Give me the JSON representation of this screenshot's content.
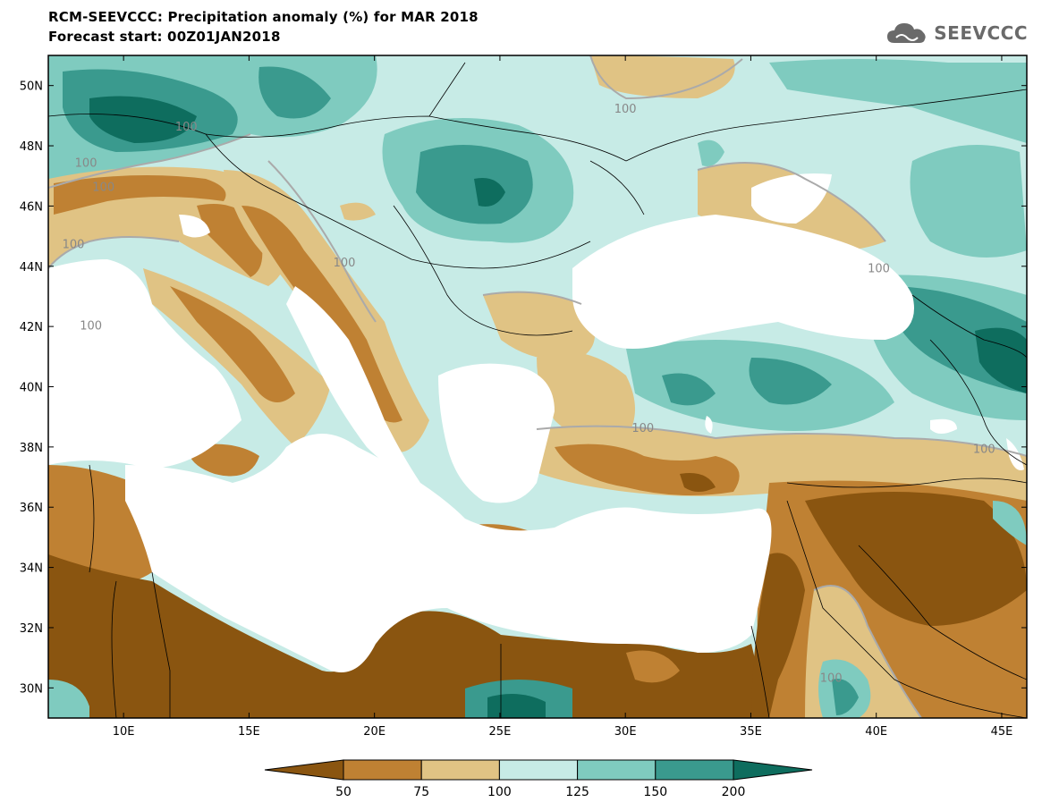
{
  "title_line1": "RCM-SEEVCCC: Precipitation anomaly (%) for MAR 2018",
  "title_line2": "Forecast start: 00Z01JAN2018",
  "logo_text": "SEEVCCC",
  "map": {
    "lon_range": [
      7,
      46
    ],
    "lat_range": [
      29,
      51
    ],
    "lon_ticks": [
      "10E",
      "15E",
      "20E",
      "25E",
      "30E",
      "35E",
      "40E",
      "45E"
    ],
    "lat_ticks": [
      "50N",
      "48N",
      "46N",
      "44N",
      "42N",
      "40N",
      "38N",
      "36N",
      "34N",
      "32N",
      "30N"
    ],
    "contour_labels": [
      "100",
      "100",
      "100",
      "100",
      "100",
      "100",
      "100",
      "100",
      "100",
      "100",
      "100"
    ]
  },
  "legend": {
    "levels": [
      "50",
      "75",
      "100",
      "125",
      "150",
      "200"
    ],
    "colors": [
      "#8a5510",
      "#bf8133",
      "#e0c384",
      "#c7ebe6",
      "#7fcbbf",
      "#3a9a8e",
      "#0e6d5e"
    ]
  },
  "colors": {
    "dry_strong": "#8a5510",
    "dry": "#bf8133",
    "dry_weak": "#e0c384",
    "wet_weak": "#c7ebe6",
    "wet": "#7fcbbf",
    "wet_strong": "#3a9a8e",
    "wet_extreme": "#0e6d5e",
    "sea": "#ffffff"
  }
}
